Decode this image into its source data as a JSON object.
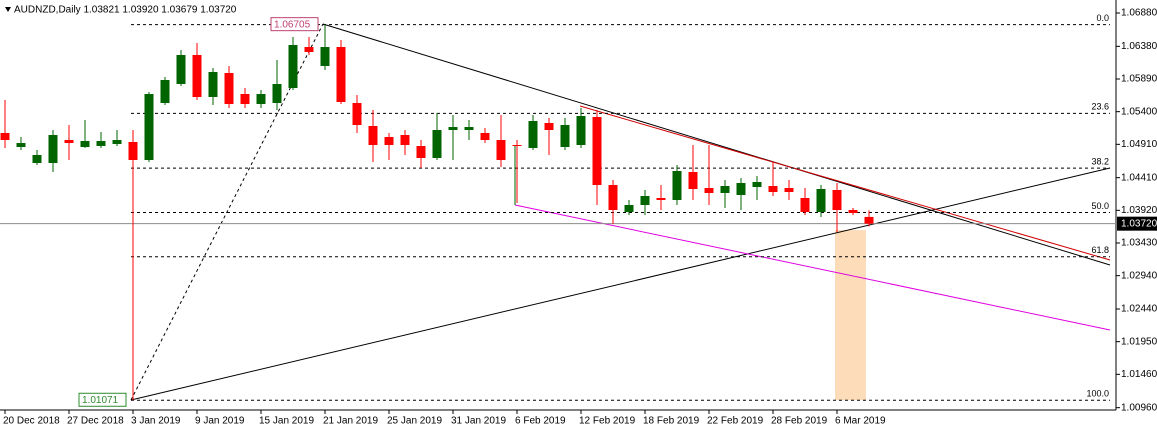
{
  "chart_data": {
    "type": "candlestick",
    "title": "AUDNZD,Daily  1.03821 1.03920 1.03679 1.03720",
    "categories": [
      "20 Dec 2018",
      null,
      null,
      null,
      "27 Dec 2018",
      null,
      null,
      null,
      "3 Jan 2019",
      null,
      null,
      null,
      "9 Jan 2019",
      null,
      null,
      null,
      "15 Jan 2019",
      null,
      null,
      null,
      "21 Jan 2019",
      null,
      null,
      null,
      "25 Jan 2019",
      null,
      null,
      null,
      "31 Jan 2019",
      null,
      null,
      null,
      "6 Feb 2019",
      null,
      null,
      null,
      "12 Feb 2019",
      null,
      null,
      null,
      "18 Feb 2019",
      null,
      null,
      null,
      "22 Feb 2019",
      null,
      null,
      null,
      "28 Feb 2019",
      null,
      null,
      null,
      "6 Mar 2019",
      null,
      null
    ],
    "open": [
      1.0508,
      1.0487,
      1.0463,
      1.0463,
      1.04975,
      1.0487,
      1.04885,
      1.04915,
      1.04945,
      1.04675,
      1.0553,
      1.05815,
      1.0625,
      1.0562,
      1.0598,
      1.05665,
      1.05515,
      1.0553,
      1.05755,
      1.0637,
      1.06085,
      1.0637,
      1.0553,
      1.05185,
      1.0502,
      1.0505,
      1.04885,
      1.04705,
      1.05125,
      1.05125,
      1.0508,
      1.04975,
      1.049,
      1.04855,
      1.0523,
      1.0487,
      1.049,
      1.0532,
      1.043,
      1.03895,
      1.04,
      1.04105,
      1.04075,
      1.04495,
      1.04255,
      1.0418,
      1.0415,
      1.0427,
      1.04285,
      1.04255,
      1.04105,
      1.03895,
      1.04225,
      1.03925,
      1.03821
    ],
    "high": [
      1.05575,
      1.0502,
      1.04825,
      1.05125,
      1.052,
      1.05275,
      1.05095,
      1.05125,
      1.05125,
      1.05695,
      1.0592,
      1.06325,
      1.0643,
      1.06055,
      1.06085,
      1.05755,
      1.05725,
      1.06175,
      1.0652,
      1.0652,
      1.06705,
      1.06475,
      1.0565,
      1.05425,
      1.0508,
      1.05125,
      1.04975,
      1.0538,
      1.0535,
      1.05275,
      1.05155,
      1.0535,
      1.04975,
      1.0535,
      1.05305,
      1.05305,
      1.05455,
      1.05425,
      1.04375,
      1.04075,
      1.04225,
      1.043,
      1.046,
      1.049,
      1.049,
      1.04375,
      1.04405,
      1.04435,
      1.04645,
      1.04375,
      1.04255,
      1.043,
      1.0433,
      1.03955,
      1.0392
    ],
    "low": [
      1.04855,
      1.04825,
      1.046,
      1.04495,
      1.04675,
      1.04855,
      1.04855,
      1.04885,
      1.01071,
      1.04645,
      1.055,
      1.05785,
      1.05575,
      1.055,
      1.05455,
      1.05455,
      1.05455,
      1.05425,
      1.05725,
      1.0625,
      1.06025,
      1.05515,
      1.0508,
      1.04645,
      1.04675,
      1.0475,
      1.04555,
      1.04675,
      1.04675,
      1.04975,
      1.0493,
      1.0457,
      1.0403,
      1.04825,
      1.0475,
      1.04825,
      1.04855,
      1.04,
      1.03715,
      1.0385,
      1.0385,
      1.03925,
      1.04,
      1.04075,
      1.04,
      1.03955,
      1.03925,
      1.04075,
      1.04135,
      1.04075,
      1.0385,
      1.0382,
      1.03595,
      1.0385,
      1.03679
    ],
    "close": [
      1.04975,
      1.0493,
      1.0475,
      1.0505,
      1.0493,
      1.0496,
      1.0496,
      1.04975,
      1.04675,
      1.05665,
      1.05875,
      1.0625,
      1.0562,
      1.05995,
      1.05515,
      1.05515,
      1.05665,
      1.05815,
      1.064,
      1.06295,
      1.0637,
      1.05545,
      1.052,
      1.049,
      1.049,
      1.049,
      1.04705,
      1.05125,
      1.0517,
      1.0517,
      1.04975,
      1.04675,
      1.04885,
      1.0526,
      1.05125,
      1.052,
      1.05335,
      1.043,
      1.03925,
      1.04,
      1.04135,
      1.04075,
      1.0451,
      1.0424,
      1.0418,
      1.04285,
      1.0433,
      1.04345,
      1.04195,
      1.04195,
      1.03895,
      1.0424,
      1.03925,
      1.0388,
      1.0372
    ],
    "up_color": "#006400",
    "down_color": "#ff0000",
    "ylim": [
      1.00925,
      1.07
    ],
    "yticks": [
      {
        "value": 1.0688,
        "label": "1.06880"
      },
      {
        "value": 1.0638,
        "label": "1.06380"
      },
      {
        "value": 1.0589,
        "label": "1.05890"
      },
      {
        "value": 1.054,
        "label": "1.05400"
      },
      {
        "value": 1.0491,
        "label": "1.04910"
      },
      {
        "value": 1.0441,
        "label": "1.04410"
      },
      {
        "value": 1.0392,
        "label": "1.03920"
      },
      {
        "value": 1.0343,
        "label": "1.03430"
      },
      {
        "value": 1.0294,
        "label": "1.02940"
      },
      {
        "value": 1.0244,
        "label": "1.02440"
      },
      {
        "value": 1.0195,
        "label": "1.01950"
      },
      {
        "value": 1.0146,
        "label": "1.01460"
      },
      {
        "value": 1.0096,
        "label": "1.00960"
      }
    ],
    "current_price": {
      "value": 1.0372,
      "label": "1.03720"
    },
    "high_marker": {
      "value": 1.06705,
      "label": "1.06705"
    },
    "low_marker": {
      "value": 1.01071,
      "label": "1.01071"
    },
    "fibonacci": [
      {
        "ratio": "0.0",
        "price": 1.06705
      },
      {
        "ratio": "23.6",
        "price": 1.05375
      },
      {
        "ratio": "38.2",
        "price": 1.04553
      },
      {
        "ratio": "50.0",
        "price": 1.03888
      },
      {
        "ratio": "61.8",
        "price": 1.03223
      },
      {
        "ratio": "100.0",
        "price": 1.01071
      }
    ]
  }
}
